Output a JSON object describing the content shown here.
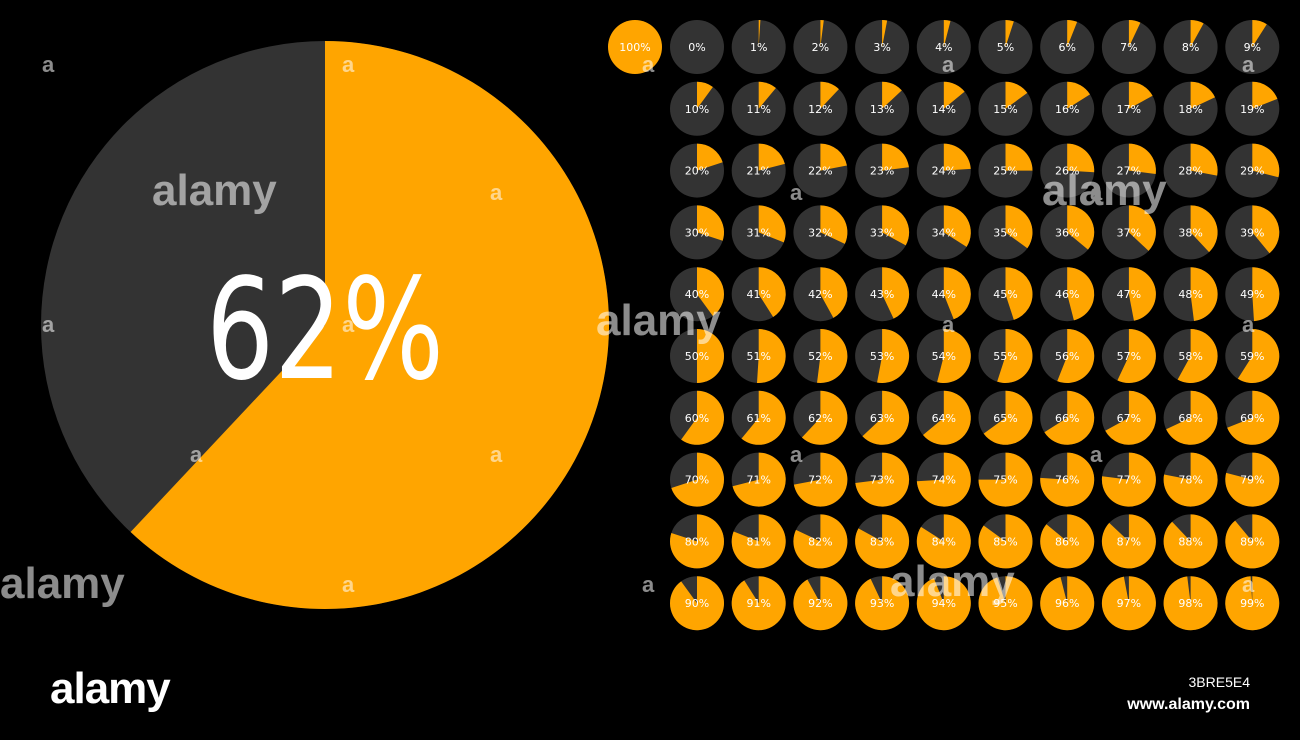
{
  "colors": {
    "background": "#000000",
    "fill": "#FFA500",
    "track": "#333333",
    "text": "#FFFFFF"
  },
  "hero": {
    "percent": 62,
    "label": "62%"
  },
  "full_indicator": {
    "percent": 100,
    "label": "100%"
  },
  "grid_percents": [
    0,
    1,
    2,
    3,
    4,
    5,
    6,
    7,
    8,
    9,
    10,
    11,
    12,
    13,
    14,
    15,
    16,
    17,
    18,
    19,
    20,
    21,
    22,
    23,
    24,
    25,
    26,
    27,
    28,
    29,
    30,
    31,
    32,
    33,
    34,
    35,
    36,
    37,
    38,
    39,
    40,
    41,
    42,
    43,
    44,
    45,
    46,
    47,
    48,
    49,
    50,
    51,
    52,
    53,
    54,
    55,
    56,
    57,
    58,
    59,
    60,
    61,
    62,
    63,
    64,
    65,
    66,
    67,
    68,
    69,
    70,
    71,
    72,
    73,
    74,
    75,
    76,
    77,
    78,
    79,
    80,
    81,
    82,
    83,
    84,
    85,
    86,
    87,
    88,
    89,
    90,
    91,
    92,
    93,
    94,
    95,
    96,
    97,
    98,
    99
  ],
  "watermark": {
    "word": "alamy",
    "letter": "a",
    "image_id": "3BRE5E4",
    "url": "www.alamy.com"
  }
}
